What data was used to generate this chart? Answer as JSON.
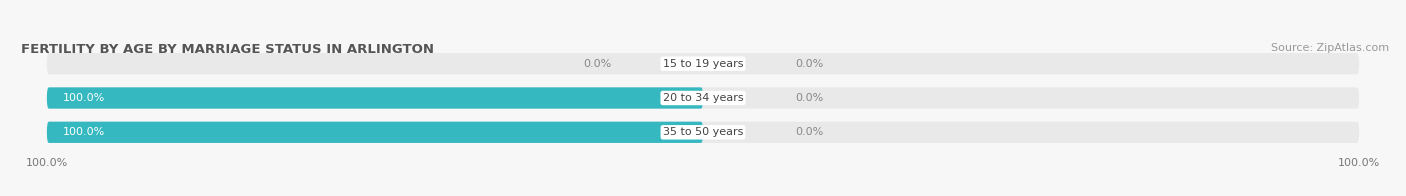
{
  "title": "FERTILITY BY AGE BY MARRIAGE STATUS IN ARLINGTON",
  "source": "Source: ZipAtlas.com",
  "categories": [
    "15 to 19 years",
    "20 to 34 years",
    "35 to 50 years"
  ],
  "married_values": [
    0.0,
    100.0,
    100.0
  ],
  "unmarried_values": [
    0.0,
    0.0,
    0.0
  ],
  "married_color": "#36b8c0",
  "unmarried_color": "#f4a8b8",
  "bar_bg_color": "#e9e9e9",
  "title_color": "#555555",
  "source_color": "#999999",
  "label_white": "#ffffff",
  "label_gray": "#888888",
  "bar_height": 0.62,
  "bar_gap": 0.18,
  "xlim_left": -100,
  "xlim_right": 100,
  "title_fontsize": 9.5,
  "source_fontsize": 8,
  "bar_label_fontsize": 8,
  "category_fontsize": 8,
  "tick_fontsize": 8,
  "legend_fontsize": 8.5,
  "bg_color": "#f7f7f7"
}
